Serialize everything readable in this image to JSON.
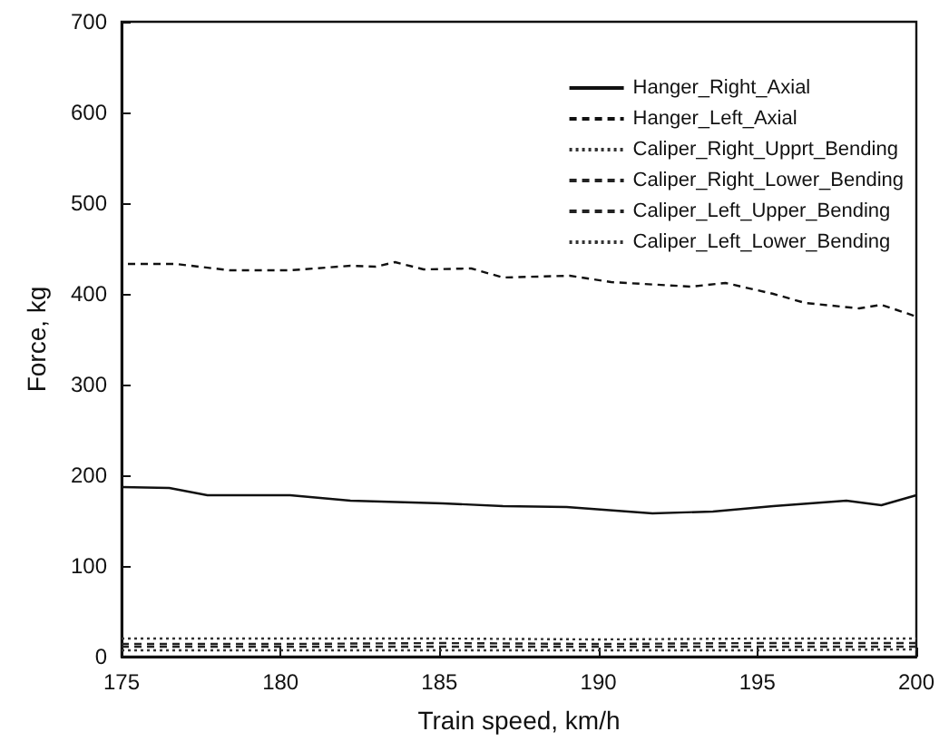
{
  "chart_data": {
    "type": "line",
    "xlabel": "Train speed, km/h",
    "ylabel": "Force, kg",
    "xlim": [
      175,
      200
    ],
    "xticks": [
      175,
      180,
      185,
      190,
      195,
      200
    ],
    "ylim": [
      0,
      700
    ],
    "yticks": [
      0,
      100,
      200,
      300,
      400,
      500,
      600,
      700
    ],
    "grid": false,
    "legend": "top right",
    "marker": "none",
    "series": [
      {
        "name": "Hanger_Right_Axial",
        "color": "#111111",
        "line_style": "solid",
        "x": [
          175,
          176.5,
          177.7,
          180.3,
          182.2,
          185.1,
          187,
          189,
          191.7,
          193.6,
          195.5,
          197.8,
          198.9,
          200
        ],
        "values": [
          187,
          186,
          178,
          178,
          172,
          169,
          166,
          165,
          158,
          160,
          166,
          172,
          167,
          178
        ]
      },
      {
        "name": "Hanger_Left_Axial",
        "color": "#111111",
        "line_style": "dashed",
        "x": [
          175.2,
          176.7,
          178.4,
          180.3,
          182.2,
          183,
          183.6,
          184.5,
          186,
          187,
          189.1,
          190.4,
          192.9,
          194,
          195.5,
          196.5,
          198.2,
          198.9,
          200
        ],
        "values": [
          433,
          433,
          426,
          426,
          431,
          430,
          435,
          427,
          428,
          418,
          420,
          413,
          408,
          412,
          400,
          390,
          384,
          388,
          375
        ]
      },
      {
        "name": "Caliper_Right_Upprt_Bending",
        "color": "#333333",
        "line_style": "dotted",
        "x": [
          175,
          180,
          185,
          190,
          195,
          200
        ],
        "values": [
          20,
          20,
          20,
          19,
          20,
          20
        ]
      },
      {
        "name": "Caliper_Right_Lower_Bending",
        "color": "#222222",
        "line_style": "dashed",
        "x": [
          175,
          180,
          185,
          190,
          195,
          200
        ],
        "values": [
          14,
          14,
          15,
          14,
          15,
          15
        ]
      },
      {
        "name": "Caliper_Left_Upper_Bending",
        "color": "#222222",
        "line_style": "dashed",
        "x": [
          175,
          180,
          185,
          190,
          195,
          200
        ],
        "values": [
          11,
          11,
          11,
          11,
          11,
          11
        ]
      },
      {
        "name": "Caliper_Left_Lower_Bending",
        "color": "#333333",
        "line_style": "dotted",
        "x": [
          175,
          180,
          185,
          190,
          195,
          200
        ],
        "values": [
          7,
          7,
          7,
          7,
          7,
          8
        ]
      }
    ]
  }
}
